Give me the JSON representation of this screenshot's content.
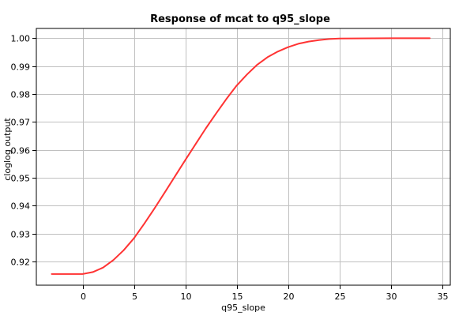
{
  "chart_data": {
    "type": "line",
    "title": "Response of mcat to q95_slope",
    "xlabel": "q95_slope",
    "ylabel": "cloglog output",
    "xlim": [
      -4.5,
      35.8
    ],
    "ylim": [
      0.9115,
      1.0035
    ],
    "xticks": [
      0,
      5,
      10,
      15,
      20,
      25,
      30,
      35
    ],
    "yticks": [
      0.92,
      0.93,
      0.94,
      0.95,
      0.96,
      0.97,
      0.98,
      0.99,
      1.0
    ],
    "xtick_labels": [
      "0",
      "5",
      "10",
      "15",
      "20",
      "25",
      "30",
      "35"
    ],
    "ytick_labels": [
      "0.92",
      "0.93",
      "0.94",
      "0.95",
      "0.96",
      "0.97",
      "0.98",
      "0.99",
      "1.00"
    ],
    "grid": true,
    "series": [
      {
        "color": "#ff3333",
        "x": [
          -3.0,
          -1.0,
          0.0,
          1.0,
          2.0,
          3.0,
          4.0,
          5.0,
          6.0,
          7.0,
          8.0,
          9.0,
          10.0,
          11.0,
          12.0,
          13.0,
          14.0,
          15.0,
          16.0,
          17.0,
          18.0,
          19.0,
          20.0,
          21.0,
          22.0,
          23.0,
          24.0,
          25.0,
          30.0,
          33.8
        ],
        "y": [
          0.9155,
          0.9155,
          0.9155,
          0.9162,
          0.9178,
          0.9205,
          0.924,
          0.9283,
          0.9335,
          0.939,
          0.9447,
          0.9505,
          0.9563,
          0.962,
          0.9677,
          0.973,
          0.9782,
          0.983,
          0.987,
          0.9905,
          0.9932,
          0.9952,
          0.9968,
          0.998,
          0.9988,
          0.9993,
          0.9997,
          0.9999,
          1.0,
          1.0
        ]
      }
    ]
  }
}
